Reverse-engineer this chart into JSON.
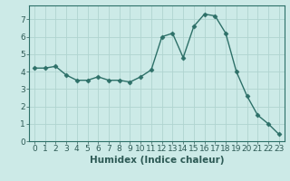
{
  "xlabel": "Humidex (Indice chaleur)",
  "x": [
    0,
    1,
    2,
    3,
    4,
    5,
    6,
    7,
    8,
    9,
    10,
    11,
    12,
    13,
    14,
    15,
    16,
    17,
    18,
    19,
    20,
    21,
    22,
    23
  ],
  "y": [
    4.2,
    4.2,
    4.3,
    3.8,
    3.5,
    3.5,
    3.7,
    3.5,
    3.5,
    3.4,
    3.7,
    4.1,
    6.0,
    6.2,
    4.8,
    6.6,
    7.3,
    7.2,
    6.2,
    4.0,
    2.6,
    1.5,
    1.0,
    0.4
  ],
  "ylim": [
    0,
    7.8
  ],
  "xlim": [
    -0.5,
    23.5
  ],
  "yticks": [
    0,
    1,
    2,
    3,
    4,
    5,
    6,
    7
  ],
  "xticks": [
    0,
    1,
    2,
    3,
    4,
    5,
    6,
    7,
    8,
    9,
    10,
    11,
    12,
    13,
    14,
    15,
    16,
    17,
    18,
    19,
    20,
    21,
    22,
    23
  ],
  "line_color": "#2d7068",
  "marker": "D",
  "marker_size": 2.5,
  "bg_color": "#cceae7",
  "grid_color": "#b0d4d0",
  "axis_label_fontsize": 7.5,
  "tick_fontsize": 6.5
}
